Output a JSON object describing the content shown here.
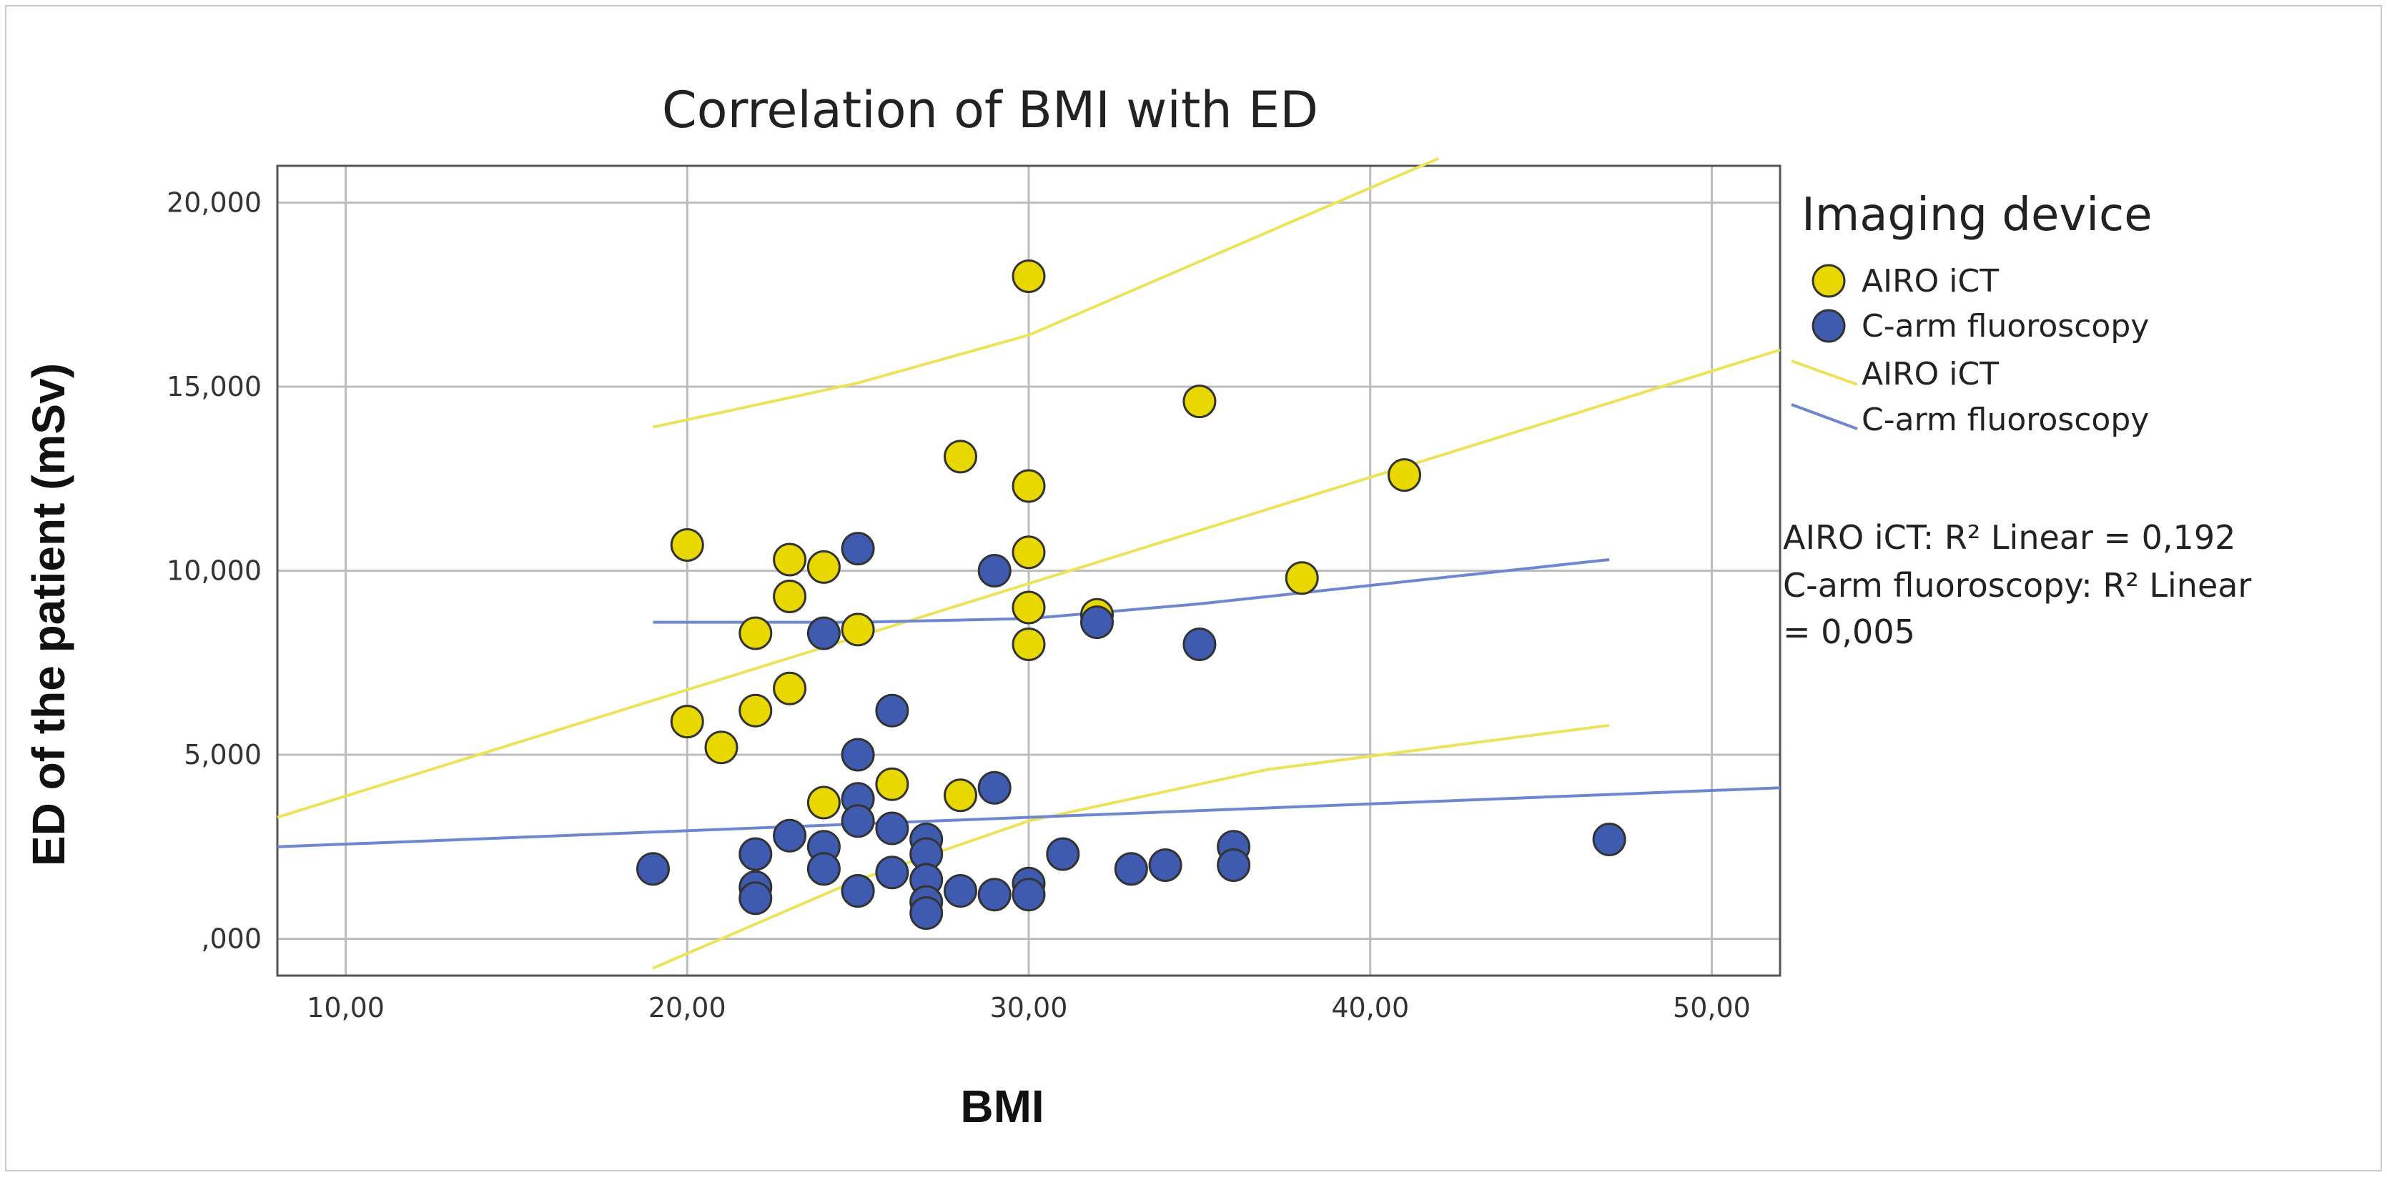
{
  "chart_data": {
    "type": "scatter",
    "title": "Correlation of BMI with ED",
    "xlabel": "BMI",
    "ylabel": "ED of the patient (mSv)",
    "xlim": [
      8,
      52
    ],
    "ylim": [
      -1,
      21
    ],
    "x_ticks": [
      10,
      20,
      30,
      40,
      50
    ],
    "x_tick_labels": [
      "10,00",
      "20,00",
      "30,00",
      "40,00",
      "50,00"
    ],
    "y_ticks": [
      0,
      5,
      10,
      15,
      20
    ],
    "y_tick_labels": [
      ",000",
      "5,000",
      "10,000",
      "15,000",
      "20,000"
    ],
    "grid": true,
    "legend_title": "Imaging device",
    "legend_position": "right",
    "colors": {
      "airo": "#e8d800",
      "carm": "#3f5bb0",
      "airo_line": "#ece35a",
      "carm_line": "#6f86d0"
    },
    "series": [
      {
        "name": "AIRO iCT",
        "color": "#e8d800",
        "points": [
          [
            30,
            18
          ],
          [
            35,
            14.6
          ],
          [
            28,
            13.1
          ],
          [
            30,
            12.3
          ],
          [
            41,
            12.6
          ],
          [
            20,
            10.7
          ],
          [
            23,
            10.3
          ],
          [
            24,
            10.1
          ],
          [
            30,
            10.5
          ],
          [
            38,
            9.8
          ],
          [
            23,
            9.3
          ],
          [
            30,
            9
          ],
          [
            32,
            8.8
          ],
          [
            22,
            8.3
          ],
          [
            25,
            8.4
          ],
          [
            30,
            8
          ],
          [
            23,
            6.8
          ],
          [
            22,
            6.2
          ],
          [
            20,
            5.9
          ],
          [
            21,
            5.2
          ],
          [
            26,
            4.2
          ],
          [
            24,
            3.7
          ],
          [
            28,
            3.9
          ],
          [
            25,
            1.3
          ]
        ]
      },
      {
        "name": "C-arm fluoroscopy",
        "color": "#3f5bb0",
        "points": [
          [
            25,
            10.6
          ],
          [
            29,
            10
          ],
          [
            24,
            8.3
          ],
          [
            32,
            8.6
          ],
          [
            35,
            8
          ],
          [
            26,
            6.2
          ],
          [
            25,
            5
          ],
          [
            29,
            4.1
          ],
          [
            25,
            3.8
          ],
          [
            25,
            3.2
          ],
          [
            26,
            3
          ],
          [
            23,
            2.8
          ],
          [
            24,
            2.5
          ],
          [
            22,
            2.3
          ],
          [
            27,
            2.7
          ],
          [
            27,
            2.3
          ],
          [
            31,
            2.3
          ],
          [
            36,
            2.5
          ],
          [
            26,
            1.8
          ],
          [
            27,
            1.6
          ],
          [
            24,
            1.9
          ],
          [
            19,
            1.9
          ],
          [
            33,
            1.9
          ],
          [
            34,
            2
          ],
          [
            36,
            2
          ],
          [
            22,
            1.4
          ],
          [
            22,
            1.1
          ],
          [
            25,
            1.3
          ],
          [
            28,
            1.3
          ],
          [
            29,
            1.2
          ],
          [
            30,
            1.5
          ],
          [
            30,
            1.2
          ],
          [
            27,
            1
          ],
          [
            27,
            0.7
          ],
          [
            47,
            2.7
          ]
        ]
      }
    ],
    "fit_lines": [
      {
        "name": "AIRO iCT",
        "kind": "fit",
        "color": "#ece35a",
        "points": [
          [
            8,
            3.3
          ],
          [
            52,
            16
          ]
        ]
      },
      {
        "name": "AIRO iCT",
        "kind": "ci-upper",
        "color": "#ece35a",
        "points": [
          [
            19,
            13.9
          ],
          [
            25,
            15.1
          ],
          [
            30,
            16.4
          ],
          [
            35,
            18.4
          ],
          [
            42,
            21.2
          ]
        ]
      },
      {
        "name": "AIRO iCT",
        "kind": "ci-lower",
        "color": "#ece35a",
        "points": [
          [
            19,
            -0.8
          ],
          [
            25,
            1.6
          ],
          [
            30,
            3.2
          ],
          [
            37,
            4.6
          ],
          [
            47,
            5.8
          ]
        ]
      },
      {
        "name": "C-arm fluoroscopy",
        "kind": "fit",
        "color": "#6f86d0",
        "points": [
          [
            8,
            2.5
          ],
          [
            52,
            4.1
          ]
        ]
      },
      {
        "name": "C-arm fluoroscopy",
        "kind": "ci-upper",
        "color": "#6f86d0",
        "points": [
          [
            19,
            8.6
          ],
          [
            25,
            8.6
          ],
          [
            30,
            8.7
          ],
          [
            35,
            9.1
          ],
          [
            40,
            9.6
          ],
          [
            47,
            10.3
          ]
        ]
      }
    ],
    "legend": {
      "marker_items": [
        "AIRO iCT",
        "C-arm fluoroscopy"
      ],
      "line_items": [
        "AIRO iCT",
        "C-arm fluoroscopy"
      ]
    },
    "annotations": [
      "AIRO iCT: R² Linear = 0,192",
      "C-arm fluoroscopy: R² Linear",
      "= 0,005"
    ]
  }
}
